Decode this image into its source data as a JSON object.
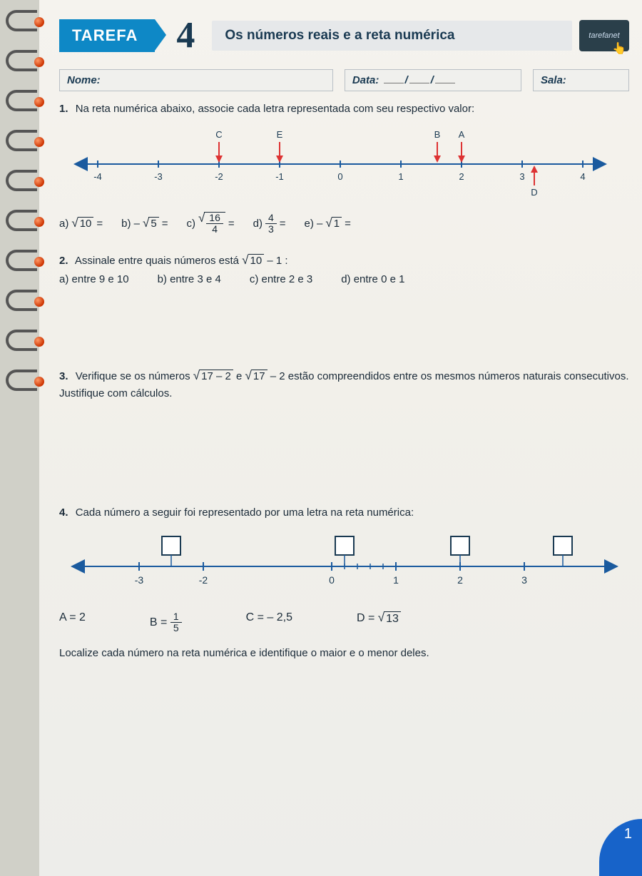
{
  "header": {
    "tarefa_label": "TAREFA",
    "number": "4",
    "title": "Os números reais e a reta numérica",
    "badge_text": "tarefanet"
  },
  "fields": {
    "nome_label": "Nome:",
    "data_label": "Data:",
    "sala_label": "Sala:"
  },
  "q1": {
    "num": "1.",
    "text": "Na reta numérica abaixo, associe cada letra representada com seu respectivo valor:",
    "line": {
      "min": -4,
      "max": 4,
      "step": 1,
      "ticks": [
        "-4",
        "-3",
        "-2",
        "-1",
        "0",
        "1",
        "2",
        "3",
        "4"
      ],
      "markers": [
        {
          "label": "C",
          "pos": -2,
          "above": true,
          "color": "#d33"
        },
        {
          "label": "E",
          "pos": -1,
          "above": true,
          "color": "#d33"
        },
        {
          "label": "B",
          "pos": 1.6,
          "above": true,
          "color": "#d33"
        },
        {
          "label": "A",
          "pos": 2,
          "above": true,
          "color": "#d33"
        },
        {
          "label": "D",
          "pos": 3.2,
          "above": false,
          "color": "#d33"
        }
      ],
      "line_color": "#1a5a9e"
    },
    "opts": {
      "a_pre": "a) ",
      "a_sqrt": "10",
      "a_post": " =",
      "b_pre": "b) –",
      "b_sqrt": "5",
      "b_post": " =",
      "c_pre": "c) ",
      "c_frac_n": "16",
      "c_frac_d": "4",
      "c_post": " =",
      "d_pre": "d) ",
      "d_frac_n": "4",
      "d_frac_d": "3",
      "d_post": " =",
      "e_pre": "e) –",
      "e_sqrt": "1",
      "e_post": " ="
    }
  },
  "q2": {
    "num": "2.",
    "text_a": "Assinale entre quais números está ",
    "sqrt": "10",
    "text_b": " – 1 :",
    "a": "a) entre 9 e 10",
    "b": "b) entre 3 e 4",
    "c": "c) entre 2 e 3",
    "d": "d)  entre 0 e 1"
  },
  "q3": {
    "num": "3.",
    "text_a": "Verifique se os números  ",
    "sqrt1": "17 – 2",
    "text_b": "  e  ",
    "sqrt2": "17",
    "text_c": " – 2  estão compreendidos entre os mesmos números naturais consecutivos. Justifique com cálculos."
  },
  "q4": {
    "num": "4.",
    "text": "Cada número a seguir foi representado por uma letra na reta numérica:",
    "line": {
      "ticks": [
        -3,
        -2,
        0,
        1,
        2,
        3
      ],
      "boxes": [
        -2.5,
        0.2,
        2,
        3.6
      ],
      "minor_start": 0,
      "minor_end": 1,
      "minor_count": 5,
      "line_color": "#1a5a9e"
    },
    "vals": {
      "a": "A = 2",
      "b_pre": "B = ",
      "b_n": "1",
      "b_d": "5",
      "c": "C = – 2,5",
      "d_pre": "D = ",
      "d_sqrt": "13"
    },
    "instr": "Localize cada número na reta numérica e identifique o maior e o menor deles."
  },
  "corner": "1"
}
